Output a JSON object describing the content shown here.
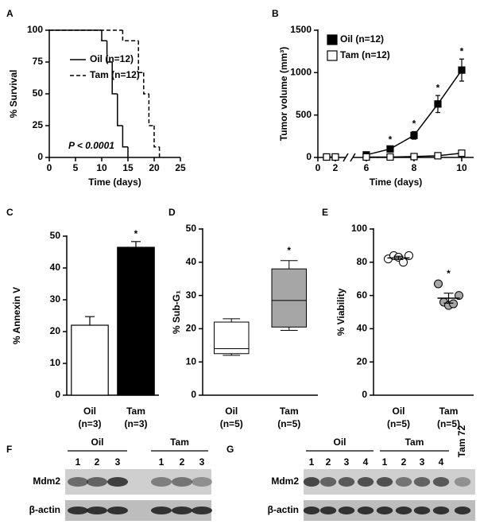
{
  "chart_data": [
    {
      "panel": "A",
      "type": "line",
      "step": true,
      "xlabel": "Time (days)",
      "ylabel": "% Survival",
      "xlim": [
        0,
        25
      ],
      "xticks": [
        0,
        5,
        10,
        15,
        20,
        25
      ],
      "ylim": [
        0,
        100
      ],
      "yticks": [
        0,
        25,
        50,
        75,
        100
      ],
      "legend": "center left",
      "annotation": "P < 0.0001",
      "series": [
        {
          "name": "Oil (n=12)",
          "color": "#000000",
          "dash": false,
          "x": [
            0,
            10,
            11,
            12,
            13,
            14,
            15
          ],
          "values": [
            100,
            91.7,
            75,
            50,
            25,
            8.3,
            0
          ]
        },
        {
          "name": "Tam (n=12)",
          "color": "#000000",
          "dash": true,
          "x": [
            0,
            14,
            17,
            18,
            19,
            20,
            21
          ],
          "values": [
            100,
            91.7,
            66.7,
            50,
            25,
            8.3,
            0
          ]
        }
      ]
    },
    {
      "panel": "B",
      "type": "line",
      "xlabel": "Time (days)",
      "ylabel": "Tumor volume (mm³)",
      "xlim": [
        0,
        10.5
      ],
      "xticks": [
        0,
        2,
        6,
        8,
        10
      ],
      "xbreak": [
        3,
        5.5
      ],
      "ylim": [
        0,
        1500
      ],
      "yticks": [
        0,
        500,
        1000,
        1500
      ],
      "legend": "upper left",
      "series": [
        {
          "name": "Oil (n=12)",
          "color": "#000000",
          "x": [
            1,
            2,
            6,
            7,
            8,
            9,
            10
          ],
          "values": [
            5,
            5,
            30,
            100,
            260,
            630,
            1030
          ],
          "errors": [
            0,
            0,
            10,
            20,
            45,
            100,
            130
          ],
          "labels": [
            null,
            null,
            null,
            "*",
            "*",
            "*",
            "*"
          ]
        },
        {
          "name": "Tam (n=12)",
          "color": "#ffffff",
          "x": [
            1,
            2,
            6,
            7,
            8,
            9,
            10
          ],
          "values": [
            5,
            5,
            5,
            5,
            10,
            20,
            50
          ],
          "errors": [
            0,
            0,
            0,
            5,
            10,
            10,
            25
          ]
        }
      ]
    },
    {
      "panel": "C",
      "type": "bar",
      "ylabel": "% Annexin V",
      "ylim": [
        0,
        50
      ],
      "yticks": [
        0,
        10,
        20,
        30,
        40,
        50
      ],
      "categories": [
        "Oil",
        "Tam"
      ],
      "category_notes": [
        "(n=3)",
        "(n=3)"
      ],
      "values": [
        22,
        46.5
      ],
      "errors": [
        2.7,
        1.8
      ],
      "colors": [
        "#ffffff",
        "#000000"
      ],
      "labels": [
        null,
        "*"
      ]
    },
    {
      "panel": "D",
      "type": "box",
      "ylabel": "% Sub-G₁",
      "ylim": [
        0,
        50
      ],
      "yticks": [
        0,
        10,
        20,
        30,
        40,
        50
      ],
      "categories": [
        "Oil",
        "Tam"
      ],
      "category_notes": [
        "(n=5)",
        "(n=5)"
      ],
      "boxes": [
        {
          "min": 12,
          "q1": 12.5,
          "median": 14,
          "q3": 22,
          "max": 23
        },
        {
          "min": 19.5,
          "q1": 20.5,
          "median": 28.5,
          "q3": 38,
          "max": 40.5
        }
      ],
      "colors": [
        "#ffffff",
        "#a6a6a6"
      ],
      "labels": [
        null,
        "*"
      ]
    },
    {
      "panel": "E",
      "type": "dot",
      "ylabel": "% Viability",
      "ylim": [
        0,
        100
      ],
      "yticks": [
        0,
        20,
        40,
        60,
        80,
        100
      ],
      "categories": [
        "Oil",
        "Tam"
      ],
      "category_notes": [
        "(n=5)",
        "(n=5)"
      ],
      "points": [
        [
          82,
          84,
          83,
          80,
          84
        ],
        [
          67,
          56,
          54,
          55,
          60
        ]
      ],
      "means": [
        82.6,
        58.4
      ],
      "errors": [
        1,
        3
      ],
      "colors": [
        "#ffffff",
        "#a6a6a6"
      ],
      "labels": [
        null,
        "*"
      ]
    }
  ],
  "blots": [
    {
      "panel": "F",
      "groups": [
        {
          "label": "Oil",
          "lanes": [
            "1",
            "2",
            "3"
          ]
        },
        {
          "label": "Tam",
          "lanes": [
            "1",
            "2",
            "3"
          ]
        }
      ],
      "rows": [
        "Mdm2",
        "β-actin"
      ]
    },
    {
      "panel": "G",
      "groups": [
        {
          "label": "Oil",
          "lanes": [
            "1",
            "2",
            "3",
            "4"
          ]
        },
        {
          "label": "Tam",
          "lanes": [
            "1",
            "2",
            "3",
            "4"
          ]
        }
      ],
      "extra_lane": "Tam 72",
      "rows": [
        "Mdm2",
        "β-actin"
      ]
    }
  ]
}
